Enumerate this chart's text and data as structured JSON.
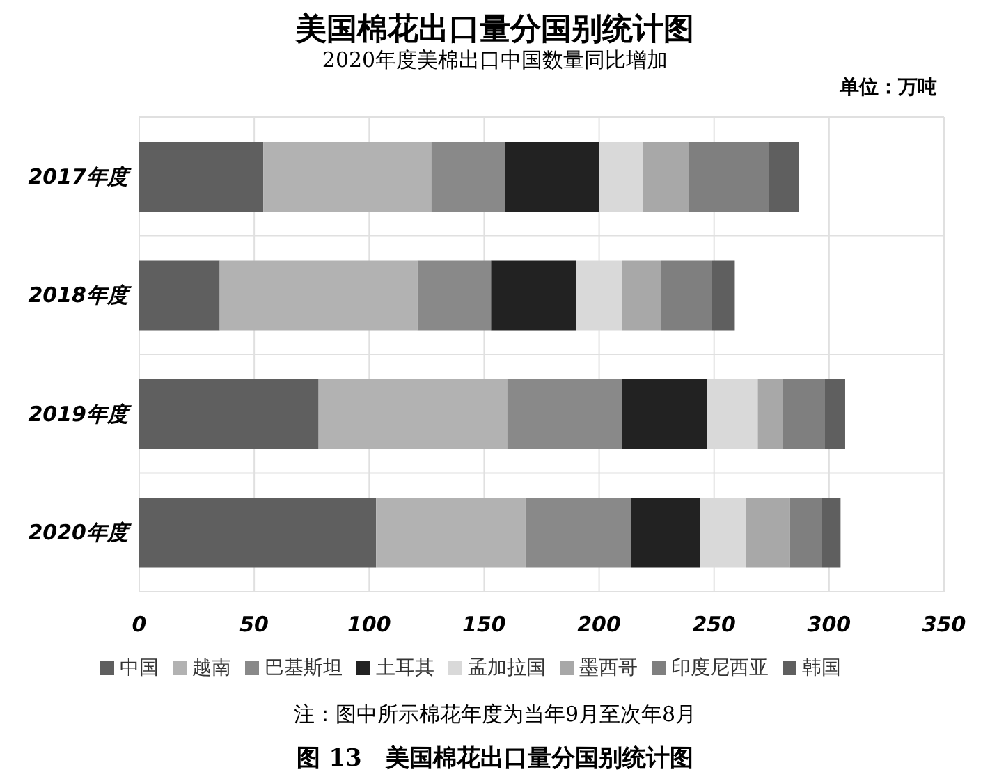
{
  "chart_data": {
    "type": "bar",
    "orientation": "horizontal",
    "stacked": true,
    "title": "美国棉花出口量分国别统计图",
    "subtitle": "2020年度美棉出口中国数量同比增加",
    "annotations": [
      "单位：万吨",
      "注：图中所示棉花年度为当年9月至次年8月",
      "图 13　美国棉花出口量分国别统计图"
    ],
    "categories": [
      "2017年度",
      "2018年度",
      "2019年度",
      "2020年度"
    ],
    "series": [
      {
        "name": "中国",
        "color": "#5f5f5f",
        "values": [
          54,
          35,
          78,
          103
        ]
      },
      {
        "name": "越南",
        "color": "#b2b2b2",
        "values": [
          73,
          86,
          82,
          65
        ]
      },
      {
        "name": "巴基斯坦",
        "color": "#898989",
        "values": [
          32,
          32,
          50,
          46
        ]
      },
      {
        "name": "土耳其",
        "color": "#222222",
        "values": [
          41,
          37,
          37,
          30
        ]
      },
      {
        "name": "孟加拉国",
        "color": "#d9d9d9",
        "values": [
          19,
          20,
          22,
          20
        ]
      },
      {
        "name": "墨西哥",
        "color": "#a8a8a8",
        "values": [
          20,
          17,
          11,
          19
        ]
      },
      {
        "name": "印度尼西亚",
        "color": "#7f7f7f",
        "values": [
          35,
          22,
          18,
          14
        ]
      },
      {
        "name": "韩国",
        "color": "#5f5f5f",
        "values": [
          13,
          10,
          9,
          8
        ]
      }
    ],
    "xlim": [
      0,
      350
    ],
    "xticks": [
      0,
      50,
      100,
      150,
      200,
      250,
      300,
      350
    ],
    "grid": true,
    "legend": "bottom"
  }
}
